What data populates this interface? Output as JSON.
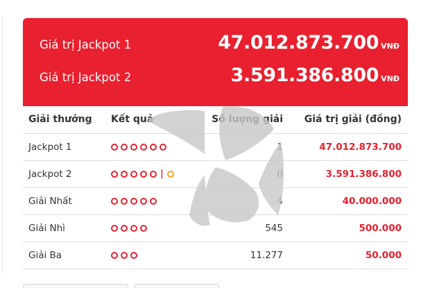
{
  "jackpot_header": {
    "rows": [
      {
        "label": "Giá trị Jackpot 1",
        "amount": "47.012.873.700",
        "currency": "VNĐ"
      },
      {
        "label": "Giá trị Jackpot 2",
        "amount": "3.591.386.800",
        "currency": "VNĐ"
      }
    ],
    "background_color": "#e8202f"
  },
  "table": {
    "headers": {
      "prize": "Giải thưởng",
      "result": "Kết quả",
      "count": "Số lượng giải",
      "value": "Giá trị giải (đồng)"
    },
    "rows": [
      {
        "prize": "Jackpot 1",
        "balls": 6,
        "special_ball": false,
        "count": "1",
        "value": "47.012.873.700"
      },
      {
        "prize": "Jackpot 2",
        "balls": 5,
        "special_ball": true,
        "count": "0",
        "value": "3.591.386.800"
      },
      {
        "prize": "Giải Nhất",
        "balls": 5,
        "special_ball": false,
        "count": "4",
        "value": "40.000.000"
      },
      {
        "prize": "Giải Nhì",
        "balls": 4,
        "special_ball": false,
        "count": "545",
        "value": "500.000"
      },
      {
        "prize": "Giải Ba",
        "balls": 3,
        "special_ball": false,
        "count": "11.277",
        "value": "50.000"
      }
    ],
    "separator": "|"
  },
  "colors": {
    "accent": "#e8202f",
    "special_ball": "#f0a417",
    "text": "#333333",
    "divider": "#dcdcdc",
    "watermark": "#c8c8c8"
  },
  "icons": {
    "watermark": "vietlott-logo-watermark-icon",
    "ball": "number-ball-icon",
    "special_ball": "special-number-ball-icon"
  }
}
